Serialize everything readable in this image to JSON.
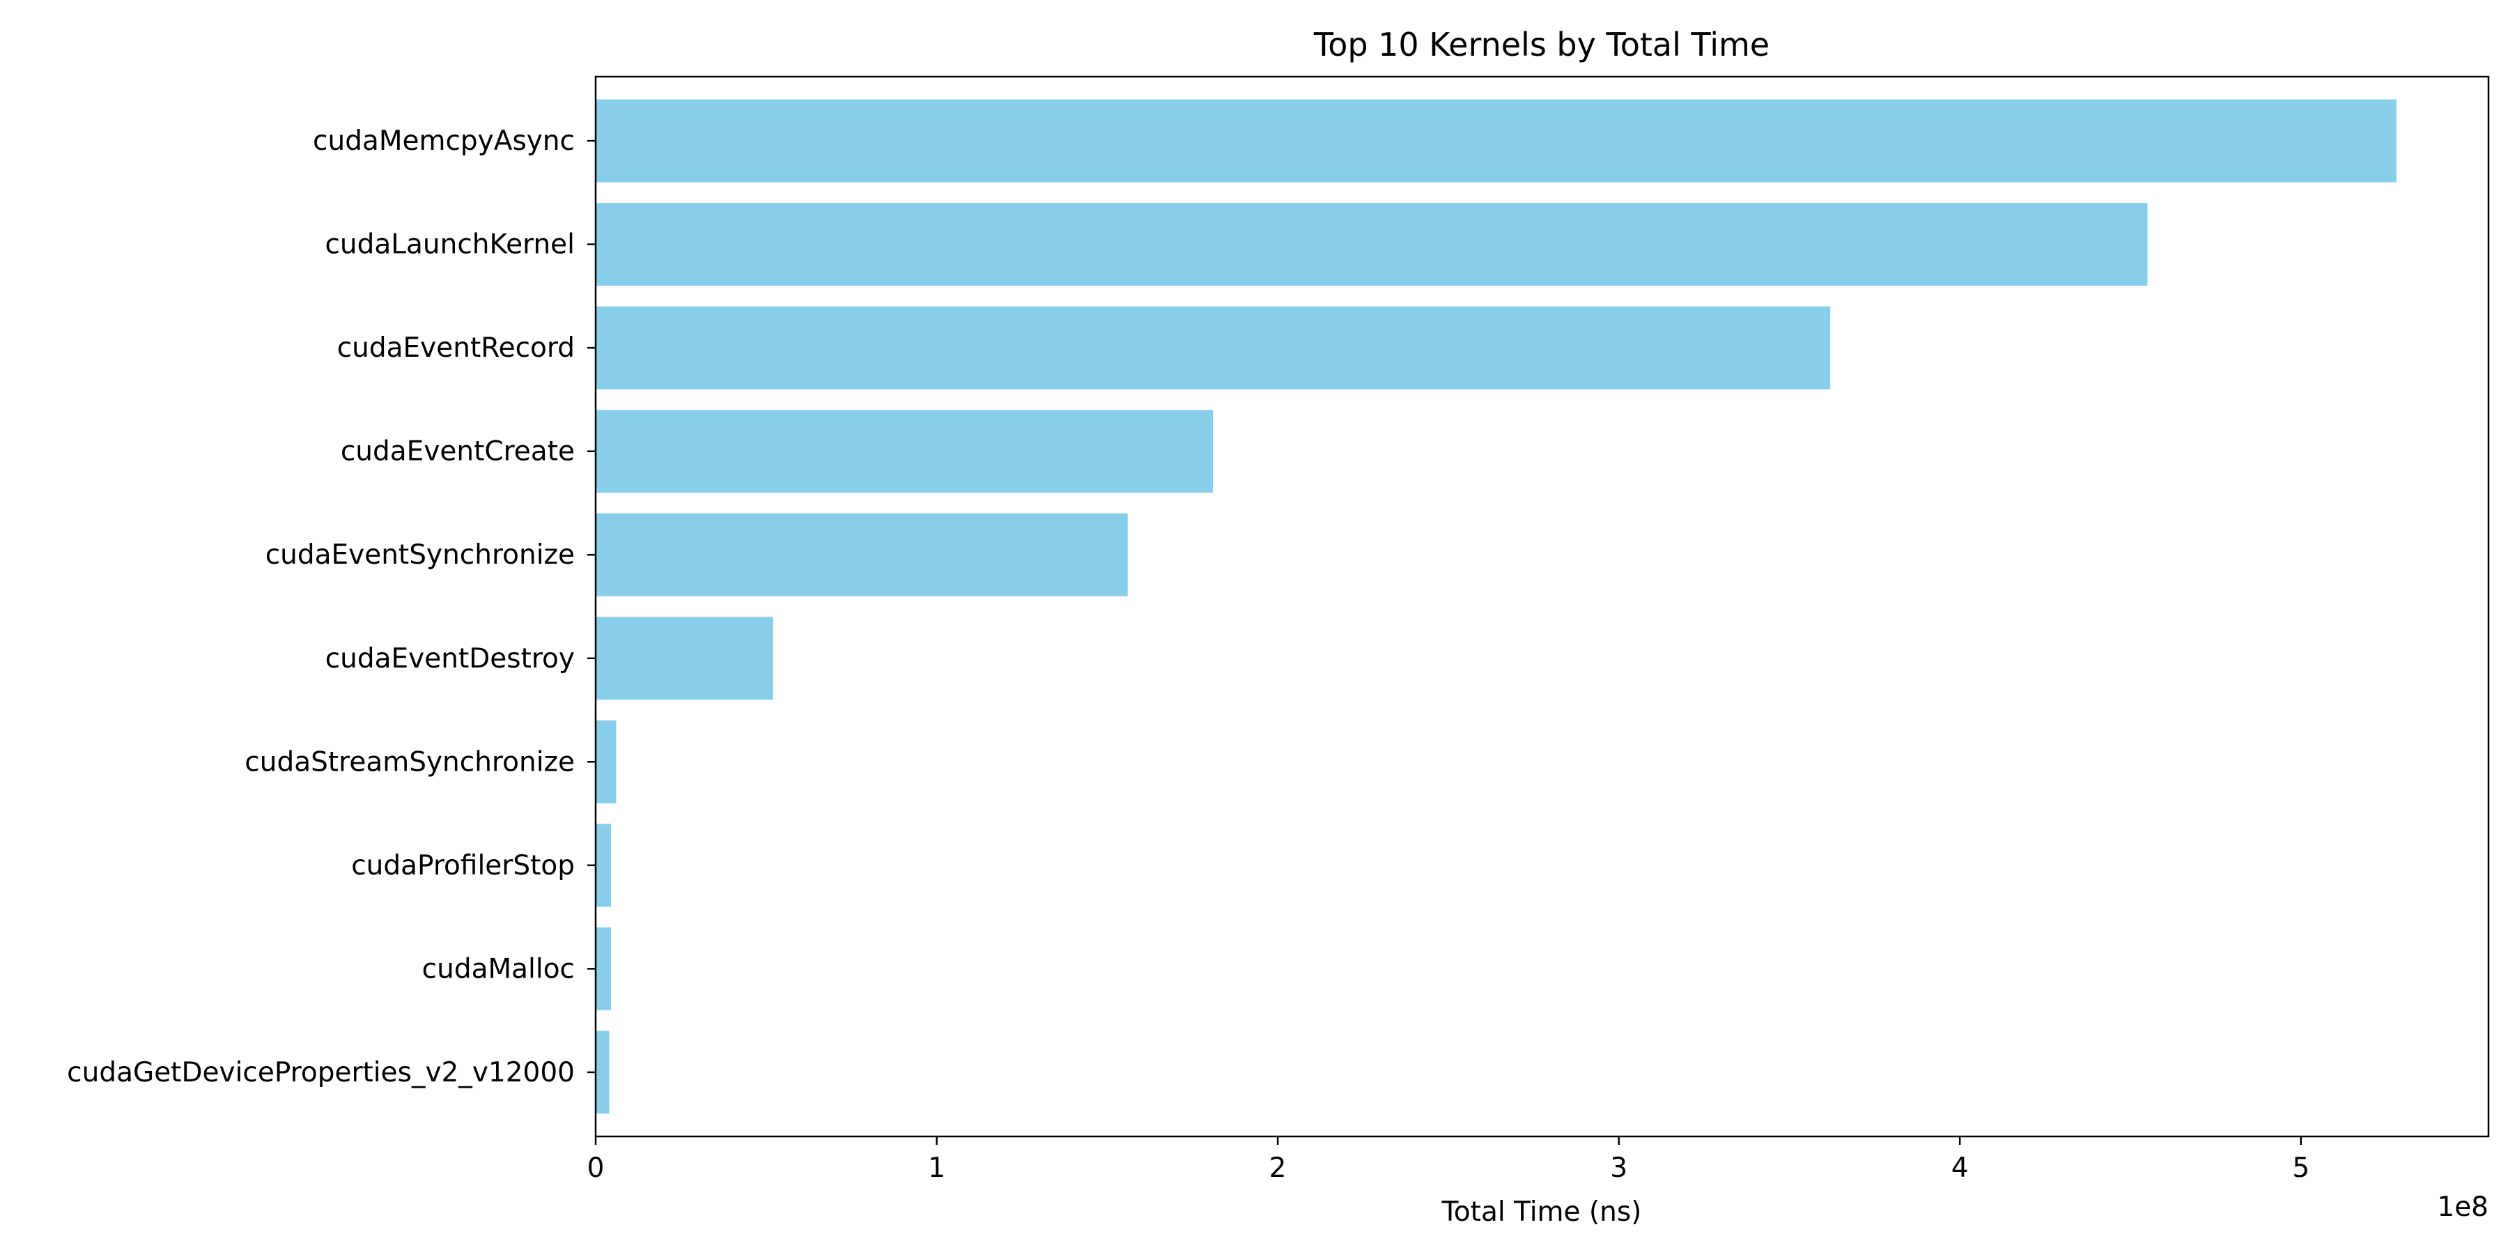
{
  "chart_data": {
    "type": "bar",
    "orientation": "horizontal",
    "title": "Top 10 Kernels by Total Time",
    "xlabel": "Total Time (ns)",
    "ylabel": "",
    "x_offset_label": "1e8",
    "x_scale_multiplier": 100000000,
    "xlim": [
      0,
      5.55
    ],
    "xticks": [
      0,
      1,
      2,
      3,
      4,
      5
    ],
    "xtick_labels": [
      "0",
      "1",
      "2",
      "3",
      "4",
      "5"
    ],
    "grid": false,
    "legend": "none",
    "bar_color": "#87ceeb",
    "categories": [
      "cudaMemcpyAsync",
      "cudaLaunchKernel",
      "cudaEventRecord",
      "cudaEventCreate",
      "cudaEventSynchronize",
      "cudaEventDestroy",
      "cudaStreamSynchronize",
      "cudaProfilerStop",
      "cudaMalloc",
      "cudaGetDeviceProperties_v2_v12000"
    ],
    "values": [
      5.28,
      4.55,
      3.62,
      1.81,
      1.56,
      0.52,
      0.06,
      0.045,
      0.045,
      0.04
    ]
  }
}
